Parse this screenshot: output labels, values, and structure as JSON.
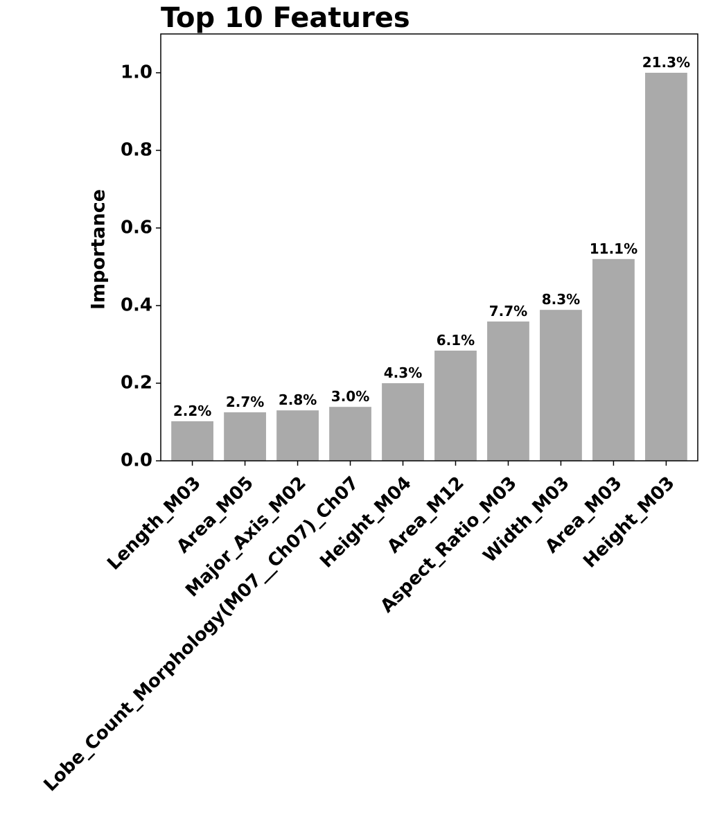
{
  "chart_data": {
    "type": "bar",
    "title": "Top 10 Features",
    "y_label": "Importance",
    "categories": [
      "Length_M03",
      "Area_M05",
      "Major_Axis_M02",
      "Lobe_Count_Morphology(M07__Ch07)_Ch07",
      "Height_M04",
      "Area_M12",
      "Aspect_Ratio_M03",
      "Width_M03",
      "Area_M03",
      "Height_M03"
    ],
    "values": [
      0.102,
      0.125,
      0.13,
      0.139,
      0.2,
      0.284,
      0.359,
      0.389,
      0.52,
      1.0
    ],
    "bar_labels": [
      "2.2%",
      "2.7%",
      "2.8%",
      "3.0%",
      "4.3%",
      "6.1%",
      "7.7%",
      "8.3%",
      "11.1%",
      "21.3%"
    ],
    "color": "#aaaaaa",
    "ylim": [
      0,
      1.1
    ],
    "yticks": [
      {
        "value": 0,
        "label": "0.0"
      },
      0.2,
      0.4,
      0.6,
      0.8,
      {
        "value": 1,
        "label": "1.0"
      }
    ]
  }
}
